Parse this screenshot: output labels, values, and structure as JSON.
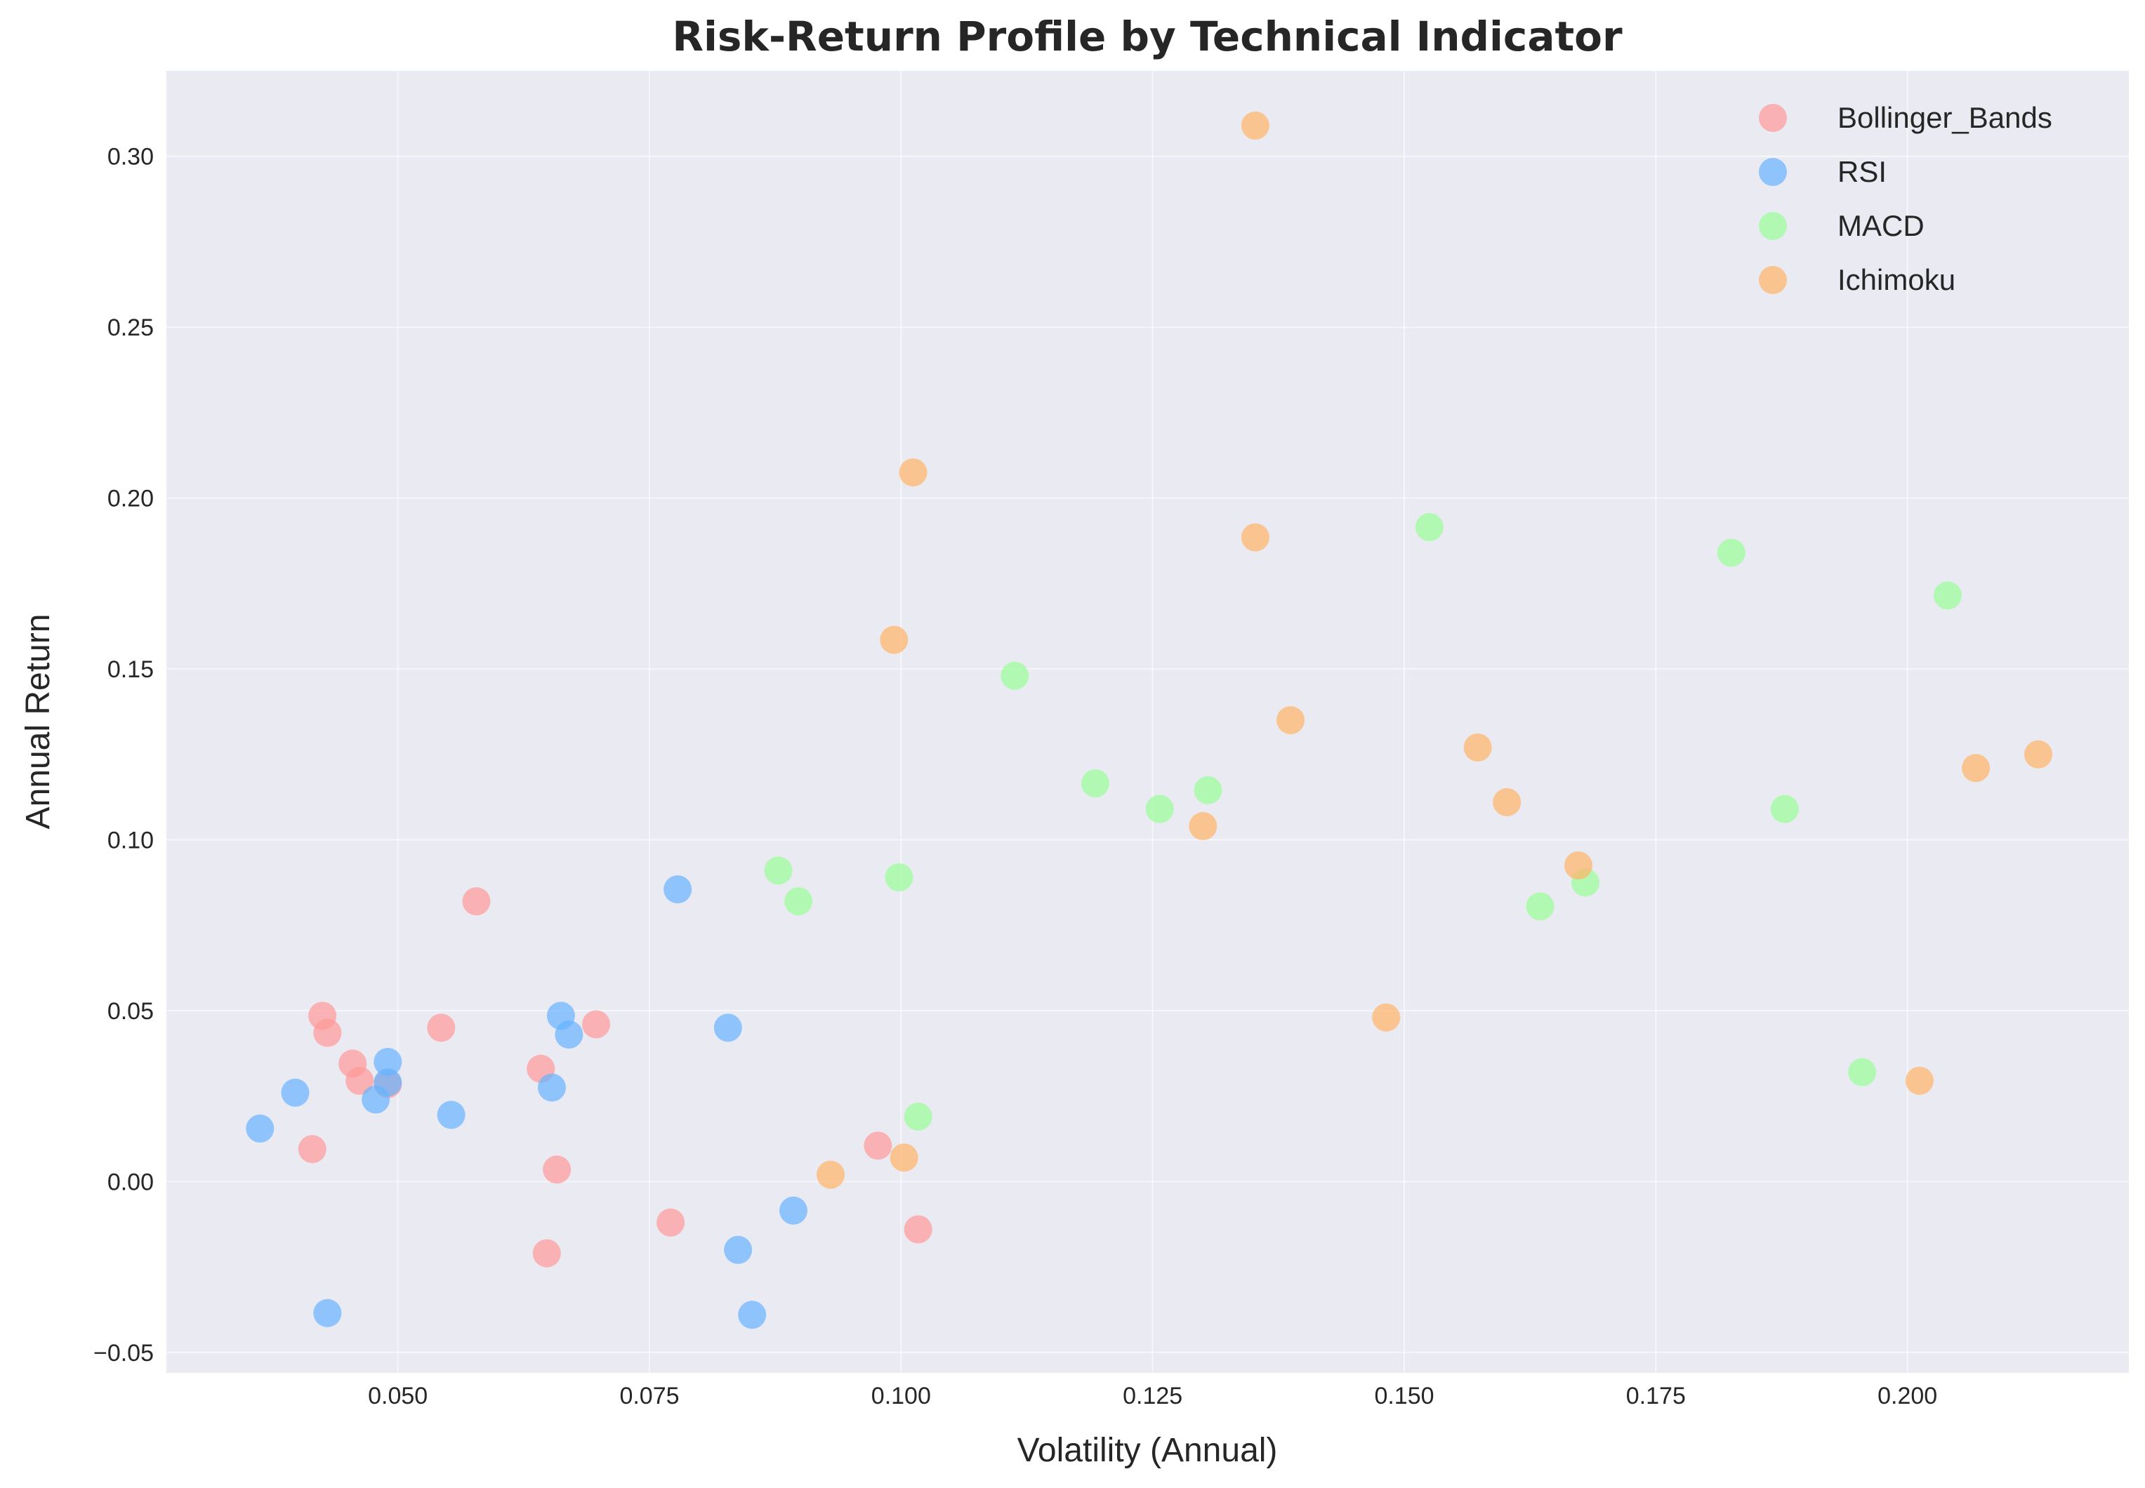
{
  "chart_data": {
    "type": "scatter",
    "title": "Risk-Return Profile by Technical Indicator",
    "xlabel": "Volatility (Annual)",
    "ylabel": "Annual Return",
    "xlim": [
      0.027,
      0.222
    ],
    "ylim": [
      -0.056,
      0.325
    ],
    "x_ticks": [
      0.05,
      0.075,
      0.1,
      0.125,
      0.15,
      0.175,
      0.2
    ],
    "x_tick_labels": [
      "0.050",
      "0.075",
      "0.100",
      "0.125",
      "0.150",
      "0.175",
      "0.200"
    ],
    "y_ticks": [
      -0.05,
      0.0,
      0.05,
      0.1,
      0.15,
      0.2,
      0.25,
      0.3
    ],
    "y_tick_labels": [
      "−0.05",
      "0.00",
      "0.05",
      "0.10",
      "0.15",
      "0.20",
      "0.25",
      "0.30"
    ],
    "grid": true,
    "legend_position": "top-right",
    "series": [
      {
        "name": "Bollinger_Bands",
        "color": "#ff9999",
        "points": [
          {
            "x": 0.0425,
            "y": 0.0485
          },
          {
            "x": 0.043,
            "y": 0.0435
          },
          {
            "x": 0.0415,
            "y": 0.0095
          },
          {
            "x": 0.0455,
            "y": 0.0345
          },
          {
            "x": 0.0462,
            "y": 0.0295
          },
          {
            "x": 0.049,
            "y": 0.0285
          },
          {
            "x": 0.0543,
            "y": 0.045
          },
          {
            "x": 0.0578,
            "y": 0.082
          },
          {
            "x": 0.0642,
            "y": 0.033
          },
          {
            "x": 0.0658,
            "y": 0.0035
          },
          {
            "x": 0.0697,
            "y": 0.046
          },
          {
            "x": 0.0648,
            "y": -0.021
          },
          {
            "x": 0.0771,
            "y": -0.012
          },
          {
            "x": 0.0977,
            "y": 0.0105
          },
          {
            "x": 0.1017,
            "y": -0.014
          }
        ]
      },
      {
        "name": "RSI",
        "color": "#66b3ff",
        "points": [
          {
            "x": 0.0363,
            "y": 0.0155
          },
          {
            "x": 0.0398,
            "y": 0.026
          },
          {
            "x": 0.043,
            "y": -0.0385
          },
          {
            "x": 0.0478,
            "y": 0.024
          },
          {
            "x": 0.049,
            "y": 0.035
          },
          {
            "x": 0.049,
            "y": 0.029
          },
          {
            "x": 0.0553,
            "y": 0.0195
          },
          {
            "x": 0.0653,
            "y": 0.0275
          },
          {
            "x": 0.0662,
            "y": 0.0485
          },
          {
            "x": 0.067,
            "y": 0.043
          },
          {
            "x": 0.0778,
            "y": 0.0855
          },
          {
            "x": 0.0828,
            "y": 0.045
          },
          {
            "x": 0.0838,
            "y": -0.02
          },
          {
            "x": 0.0852,
            "y": -0.039
          },
          {
            "x": 0.0893,
            "y": -0.0085
          }
        ]
      },
      {
        "name": "MACD",
        "color": "#99ff99",
        "points": [
          {
            "x": 0.0878,
            "y": 0.091
          },
          {
            "x": 0.0898,
            "y": 0.082
          },
          {
            "x": 0.0998,
            "y": 0.089
          },
          {
            "x": 0.1017,
            "y": 0.019
          },
          {
            "x": 0.1113,
            "y": 0.148
          },
          {
            "x": 0.1193,
            "y": 0.1165
          },
          {
            "x": 0.1257,
            "y": 0.109
          },
          {
            "x": 0.1305,
            "y": 0.1145
          },
          {
            "x": 0.1525,
            "y": 0.1915
          },
          {
            "x": 0.1635,
            "y": 0.0805
          },
          {
            "x": 0.168,
            "y": 0.0875
          },
          {
            "x": 0.1825,
            "y": 0.184
          },
          {
            "x": 0.1878,
            "y": 0.109
          },
          {
            "x": 0.1955,
            "y": 0.032
          },
          {
            "x": 0.204,
            "y": 0.1715
          }
        ]
      },
      {
        "name": "Ichimoku",
        "color": "#ffb366",
        "points": [
          {
            "x": 0.093,
            "y": 0.002
          },
          {
            "x": 0.0993,
            "y": 0.1585
          },
          {
            "x": 0.1003,
            "y": 0.007
          },
          {
            "x": 0.1012,
            "y": 0.2075
          },
          {
            "x": 0.13,
            "y": 0.104
          },
          {
            "x": 0.1352,
            "y": 0.309
          },
          {
            "x": 0.1352,
            "y": 0.1885
          },
          {
            "x": 0.1387,
            "y": 0.135
          },
          {
            "x": 0.1482,
            "y": 0.048
          },
          {
            "x": 0.1573,
            "y": 0.127
          },
          {
            "x": 0.1602,
            "y": 0.111
          },
          {
            "x": 0.1673,
            "y": 0.0925
          },
          {
            "x": 0.2012,
            "y": 0.0295
          },
          {
            "x": 0.2068,
            "y": 0.121
          },
          {
            "x": 0.213,
            "y": 0.125
          }
        ]
      }
    ]
  }
}
